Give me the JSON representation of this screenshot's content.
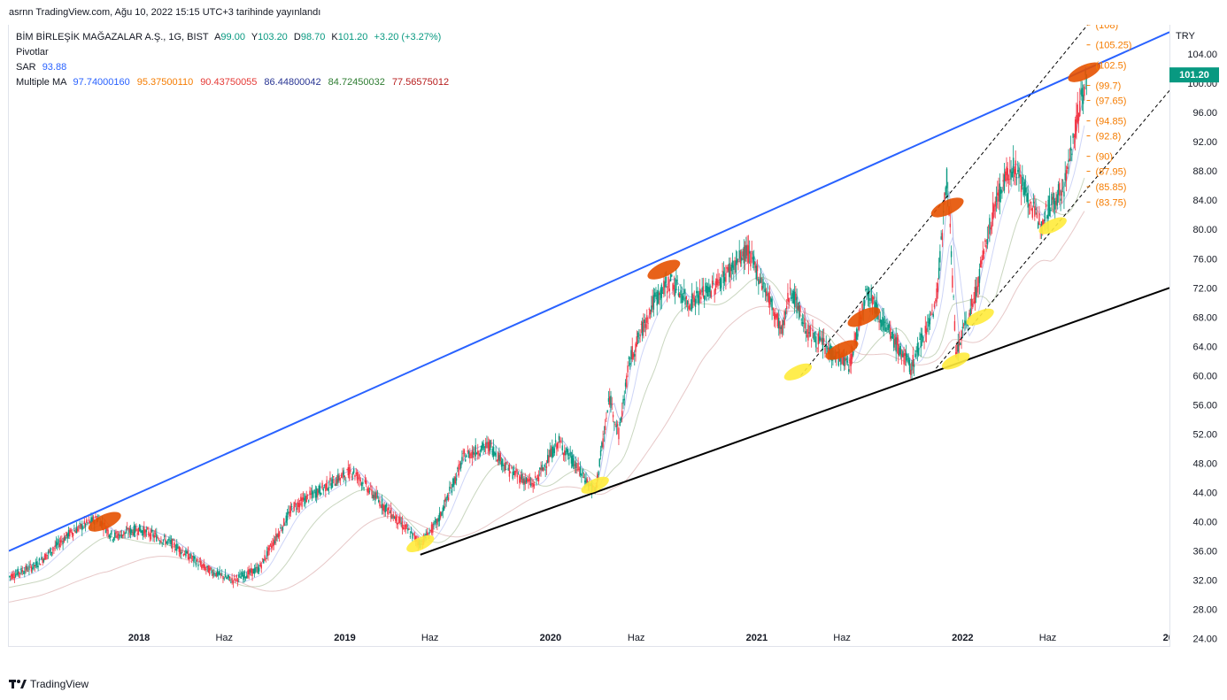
{
  "header": {
    "published": "asrnn TradingView.com, Ağu 10, 2022 15:15 UTC+3 tarihinde yayınlandı"
  },
  "legend": {
    "symbol": "BİM BİRLEŞİK MAĞAZALAR A.Ş., 1G, BIST",
    "open_label": "A",
    "open": "99.00",
    "high_label": "Y",
    "high": "103.20",
    "low_label": "D",
    "low": "98.70",
    "close_label": "K",
    "close": "101.20",
    "change": "+3.20 (+3.27%)",
    "pivots_label": "Pivotlar",
    "sar_label": "SAR",
    "sar_value": "93.88",
    "ma_label": "Multiple MA",
    "ma_values": [
      {
        "value": "97.74000160",
        "color": "#2962ff"
      },
      {
        "value": "95.37500110",
        "color": "#f57c00"
      },
      {
        "value": "90.43750055",
        "color": "#e53935"
      },
      {
        "value": "86.44800042",
        "color": "#283593"
      },
      {
        "value": "84.72450032",
        "color": "#2e7d32"
      },
      {
        "value": "77.56575012",
        "color": "#b71c1c"
      }
    ]
  },
  "footer": {
    "brand": "TradingView"
  },
  "chart_data": {
    "type": "line",
    "title": "BİM BİRLEŞİK MAĞAZALAR A.Ş., 1G, BIST",
    "currency": "TRY",
    "ylim": [
      23,
      108
    ],
    "y_ticks": [
      "104.00",
      "100.00",
      "96.00",
      "92.00",
      "88.00",
      "84.00",
      "80.00",
      "76.00",
      "72.00",
      "68.00",
      "64.00",
      "60.00",
      "56.00",
      "52.00",
      "48.00",
      "44.00",
      "40.00",
      "36.00",
      "32.00",
      "28.00",
      "24.00"
    ],
    "y_tick_values": [
      104,
      100,
      96,
      92,
      88,
      84,
      80,
      76,
      72,
      68,
      64,
      60,
      56,
      52,
      48,
      44,
      40,
      36,
      32,
      28,
      24
    ],
    "x_ticks": [
      "2018",
      "Haz",
      "2019",
      "Haz",
      "2020",
      "Haz",
      "2021",
      "Haz",
      "2022",
      "Haz",
      "20"
    ],
    "x_tick_dates": [
      "2018-01-01",
      "2018-06-01",
      "2019-01-01",
      "2019-06-01",
      "2020-01-01",
      "2020-06-01",
      "2021-01-01",
      "2021-06-01",
      "2022-01-01",
      "2022-06-01",
      "2023-01-01"
    ],
    "x_range": [
      "2017-05-15",
      "2023-01-03"
    ],
    "last_price": "101.20",
    "pivot_levels": [
      "(108)",
      "(105.25)",
      "(102.5)",
      "(99.7)",
      "(97.65)",
      "(94.85)",
      "(92.8)",
      "(90)",
      "(87.95)",
      "(85.85)",
      "(83.75)"
    ],
    "pivot_values": [
      108,
      105.25,
      102.5,
      99.7,
      97.65,
      94.85,
      92.8,
      90,
      87.95,
      85.85,
      83.75
    ],
    "price_series": {
      "name": "Close",
      "points": [
        [
          "2017-05-15",
          32.5
        ],
        [
          "2017-07-01",
          34
        ],
        [
          "2017-09-01",
          38.5
        ],
        [
          "2017-10-20",
          40.5
        ],
        [
          "2017-11-15",
          38
        ],
        [
          "2018-01-01",
          39
        ],
        [
          "2018-03-01",
          37
        ],
        [
          "2018-05-01",
          33.5
        ],
        [
          "2018-06-15",
          32
        ],
        [
          "2018-08-01",
          33.5
        ],
        [
          "2018-10-01",
          42
        ],
        [
          "2018-12-01",
          45
        ],
        [
          "2019-01-15",
          47
        ],
        [
          "2019-03-01",
          43
        ],
        [
          "2019-05-15",
          37
        ],
        [
          "2019-06-15",
          40
        ],
        [
          "2019-08-01",
          49
        ],
        [
          "2019-09-15",
          50.5
        ],
        [
          "2019-10-20",
          47
        ],
        [
          "2019-12-01",
          45
        ],
        [
          "2020-01-15",
          51
        ],
        [
          "2020-03-01",
          46
        ],
        [
          "2020-03-20",
          44
        ],
        [
          "2020-04-15",
          57
        ],
        [
          "2020-05-01",
          52
        ],
        [
          "2020-05-20",
          62
        ],
        [
          "2020-07-01",
          70
        ],
        [
          "2020-08-01",
          73
        ],
        [
          "2020-09-01",
          70
        ],
        [
          "2020-10-15",
          72
        ],
        [
          "2020-12-15",
          77
        ],
        [
          "2021-01-15",
          72
        ],
        [
          "2021-02-15",
          66
        ],
        [
          "2021-03-01",
          72
        ],
        [
          "2021-04-01",
          66
        ],
        [
          "2021-05-15",
          63
        ],
        [
          "2021-06-15",
          61.5
        ],
        [
          "2021-07-15",
          72
        ],
        [
          "2021-08-15",
          67
        ],
        [
          "2021-10-01",
          61
        ],
        [
          "2021-11-15",
          70
        ],
        [
          "2021-12-05",
          88
        ],
        [
          "2021-12-20",
          63
        ],
        [
          "2022-01-20",
          70
        ],
        [
          "2022-03-01",
          84
        ],
        [
          "2022-04-01",
          89
        ],
        [
          "2022-05-15",
          81
        ],
        [
          "2022-07-01",
          86
        ],
        [
          "2022-07-25",
          96
        ],
        [
          "2022-08-10",
          101.2
        ]
      ]
    },
    "trendlines": [
      {
        "name": "Upper channel",
        "from": [
          "2017-05-15",
          36
        ],
        "to": [
          "2023-01-03",
          107
        ],
        "color": "#2962ff"
      },
      {
        "name": "Lower support",
        "from": [
          "2019-05-15",
          35.5
        ],
        "to": [
          "2023-01-03",
          72
        ],
        "color": "#000000"
      },
      {
        "name": "Dashed upper",
        "from": [
          "2021-03-20",
          60
        ],
        "to": [
          "2022-09-01",
          110
        ],
        "color": "#000000",
        "dashed": true
      },
      {
        "name": "Dashed lower",
        "from": [
          "2021-11-15",
          61
        ],
        "to": [
          "2023-01-03",
          99
        ],
        "color": "#000000",
        "dashed": true
      }
    ],
    "highlight_tops": [
      [
        "2017-11-01",
        40
      ],
      [
        "2020-07-20",
        74.5
      ],
      [
        "2021-07-10",
        68
      ],
      [
        "2021-06-01",
        63.5
      ],
      [
        "2021-12-05",
        83
      ],
      [
        "2022-08-05",
        101.5
      ]
    ],
    "highlight_bottoms": [
      [
        "2019-05-15",
        37
      ],
      [
        "2020-03-20",
        45
      ],
      [
        "2021-03-15",
        60.5
      ],
      [
        "2021-12-20",
        62
      ],
      [
        "2022-02-01",
        68
      ],
      [
        "2022-06-10",
        80.5
      ]
    ],
    "grid": false,
    "colors": {
      "up": "#089981",
      "down": "#f23645",
      "pivot": "#f57c00",
      "last_price_bg": "#089981"
    }
  }
}
